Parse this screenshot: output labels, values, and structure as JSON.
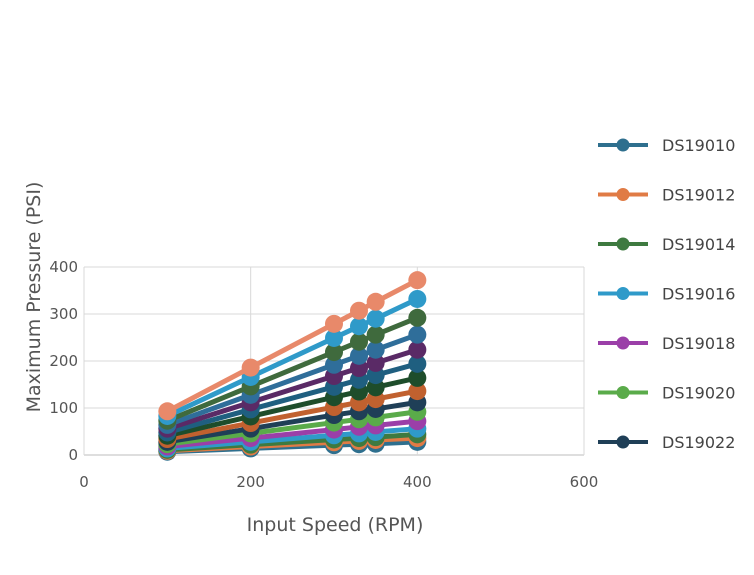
{
  "chart_data": {
    "type": "line",
    "xlabel": "Input Speed (RPM)",
    "ylabel": "Maximum Pressure (PSI)",
    "xlim": [
      0,
      600
    ],
    "ylim": [
      0,
      400
    ],
    "x_ticks": [
      0,
      200,
      400,
      600
    ],
    "y_ticks": [
      0,
      100,
      200,
      300,
      400
    ],
    "grid": true,
    "legend_position": "right",
    "x": [
      100,
      200,
      300,
      330,
      350,
      400
    ],
    "series": [
      {
        "name": "DS19010",
        "color": "#2e6f8e",
        "values": [
          7,
          14,
          21,
          23,
          24,
          28
        ]
      },
      {
        "name": "DS19012",
        "color": "#e07b45",
        "values": [
          9,
          18,
          27,
          30,
          32,
          36
        ]
      },
      {
        "name": "DS19014",
        "color": "#3e7a40",
        "values": [
          11,
          22,
          33,
          36,
          38,
          44
        ]
      },
      {
        "name": "DS19016",
        "color": "#2f9ac9",
        "values": [
          14,
          28,
          42,
          46,
          49,
          56
        ]
      },
      {
        "name": "DS19018",
        "color": "#9b3fa8",
        "values": [
          18,
          36,
          54,
          60,
          63,
          72
        ]
      },
      {
        "name": "DS19020",
        "color": "#5aab4a",
        "values": [
          23,
          46,
          69,
          76,
          80,
          92
        ]
      },
      {
        "name": "DS19022",
        "color": "#1f3f57",
        "values": [
          28,
          56,
          85,
          93,
          98,
          112
        ]
      },
      {
        "name": "",
        "color": "#c1612f",
        "values": [
          34,
          68,
          102,
          112,
          119,
          136
        ]
      },
      {
        "name": "",
        "color": "#1e4d2b",
        "values": [
          41,
          82,
          123,
          135,
          144,
          164
        ]
      },
      {
        "name": "",
        "color": "#1f5f80",
        "values": [
          48,
          97,
          145,
          160,
          170,
          194
        ]
      },
      {
        "name": "",
        "color": "#5a2a66",
        "values": [
          56,
          112,
          168,
          185,
          196,
          224
        ]
      },
      {
        "name": "",
        "color": "#2f6e9a",
        "values": [
          64,
          128,
          192,
          211,
          224,
          256
        ]
      },
      {
        "name": "",
        "color": "#3f6a3d",
        "values": [
          73,
          146,
          219,
          241,
          256,
          292
        ]
      },
      {
        "name": "",
        "color": "#2f9ac9",
        "values": [
          83,
          166,
          249,
          274,
          290,
          332
        ]
      },
      {
        "name": "",
        "color": "#e8896a",
        "values": [
          93,
          186,
          279,
          307,
          326,
          372
        ]
      }
    ]
  }
}
